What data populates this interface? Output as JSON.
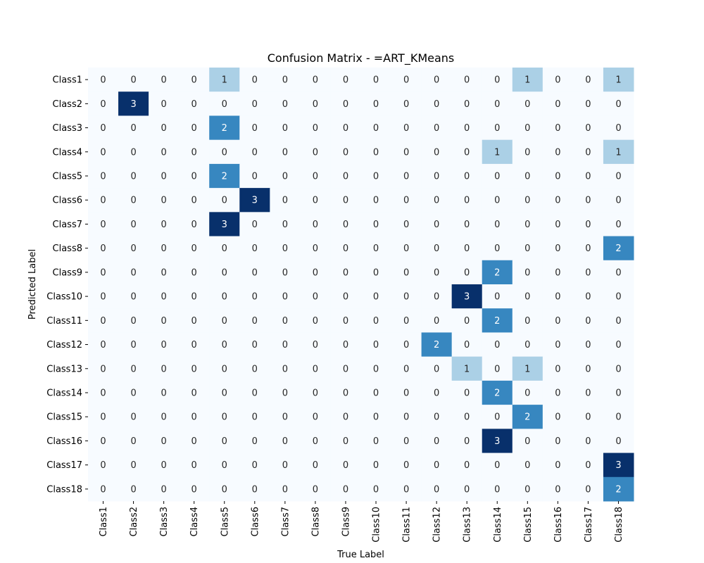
{
  "chart_data": {
    "type": "heatmap",
    "title": "Confusion Matrix - =ART_KMeans",
    "xlabel": "True Label",
    "ylabel": "Predicted Label",
    "x_categories": [
      "Class1",
      "Class2",
      "Class3",
      "Class4",
      "Class5",
      "Class6",
      "Class7",
      "Class8",
      "Class9",
      "Class10",
      "Class11",
      "Class12",
      "Class13",
      "Class14",
      "Class15",
      "Class16",
      "Class17",
      "Class18"
    ],
    "y_categories": [
      "Class1",
      "Class2",
      "Class3",
      "Class4",
      "Class5",
      "Class6",
      "Class7",
      "Class8",
      "Class9",
      "Class10",
      "Class11",
      "Class12",
      "Class13",
      "Class14",
      "Class15",
      "Class16",
      "Class17",
      "Class18"
    ],
    "values": [
      [
        0,
        0,
        0,
        0,
        1,
        0,
        0,
        0,
        0,
        0,
        0,
        0,
        0,
        0,
        1,
        0,
        0,
        1
      ],
      [
        0,
        3,
        0,
        0,
        0,
        0,
        0,
        0,
        0,
        0,
        0,
        0,
        0,
        0,
        0,
        0,
        0,
        0
      ],
      [
        0,
        0,
        0,
        0,
        2,
        0,
        0,
        0,
        0,
        0,
        0,
        0,
        0,
        0,
        0,
        0,
        0,
        0
      ],
      [
        0,
        0,
        0,
        0,
        0,
        0,
        0,
        0,
        0,
        0,
        0,
        0,
        0,
        1,
        0,
        0,
        0,
        1
      ],
      [
        0,
        0,
        0,
        0,
        2,
        0,
        0,
        0,
        0,
        0,
        0,
        0,
        0,
        0,
        0,
        0,
        0,
        0
      ],
      [
        0,
        0,
        0,
        0,
        0,
        3,
        0,
        0,
        0,
        0,
        0,
        0,
        0,
        0,
        0,
        0,
        0,
        0
      ],
      [
        0,
        0,
        0,
        0,
        3,
        0,
        0,
        0,
        0,
        0,
        0,
        0,
        0,
        0,
        0,
        0,
        0,
        0
      ],
      [
        0,
        0,
        0,
        0,
        0,
        0,
        0,
        0,
        0,
        0,
        0,
        0,
        0,
        0,
        0,
        0,
        0,
        2
      ],
      [
        0,
        0,
        0,
        0,
        0,
        0,
        0,
        0,
        0,
        0,
        0,
        0,
        0,
        2,
        0,
        0,
        0,
        0
      ],
      [
        0,
        0,
        0,
        0,
        0,
        0,
        0,
        0,
        0,
        0,
        0,
        0,
        3,
        0,
        0,
        0,
        0,
        0
      ],
      [
        0,
        0,
        0,
        0,
        0,
        0,
        0,
        0,
        0,
        0,
        0,
        0,
        0,
        2,
        0,
        0,
        0,
        0
      ],
      [
        0,
        0,
        0,
        0,
        0,
        0,
        0,
        0,
        0,
        0,
        0,
        2,
        0,
        0,
        0,
        0,
        0,
        0
      ],
      [
        0,
        0,
        0,
        0,
        0,
        0,
        0,
        0,
        0,
        0,
        0,
        0,
        1,
        0,
        1,
        0,
        0,
        0
      ],
      [
        0,
        0,
        0,
        0,
        0,
        0,
        0,
        0,
        0,
        0,
        0,
        0,
        0,
        2,
        0,
        0,
        0,
        0
      ],
      [
        0,
        0,
        0,
        0,
        0,
        0,
        0,
        0,
        0,
        0,
        0,
        0,
        0,
        0,
        2,
        0,
        0,
        0
      ],
      [
        0,
        0,
        0,
        0,
        0,
        0,
        0,
        0,
        0,
        0,
        0,
        0,
        0,
        3,
        0,
        0,
        0,
        0
      ],
      [
        0,
        0,
        0,
        0,
        0,
        0,
        0,
        0,
        0,
        0,
        0,
        0,
        0,
        0,
        0,
        0,
        0,
        3
      ],
      [
        0,
        0,
        0,
        0,
        0,
        0,
        0,
        0,
        0,
        0,
        0,
        0,
        0,
        0,
        0,
        0,
        0,
        2
      ]
    ],
    "value_range": [
      0,
      3
    ],
    "colormap": "Blues",
    "color_scale": [
      "#f7fbff",
      "#abd0e6",
      "#3787c0",
      "#08306b"
    ],
    "text_colors": {
      "light": "#ffffff",
      "dark": "#262626"
    },
    "colorbar": false,
    "grid": false
  }
}
